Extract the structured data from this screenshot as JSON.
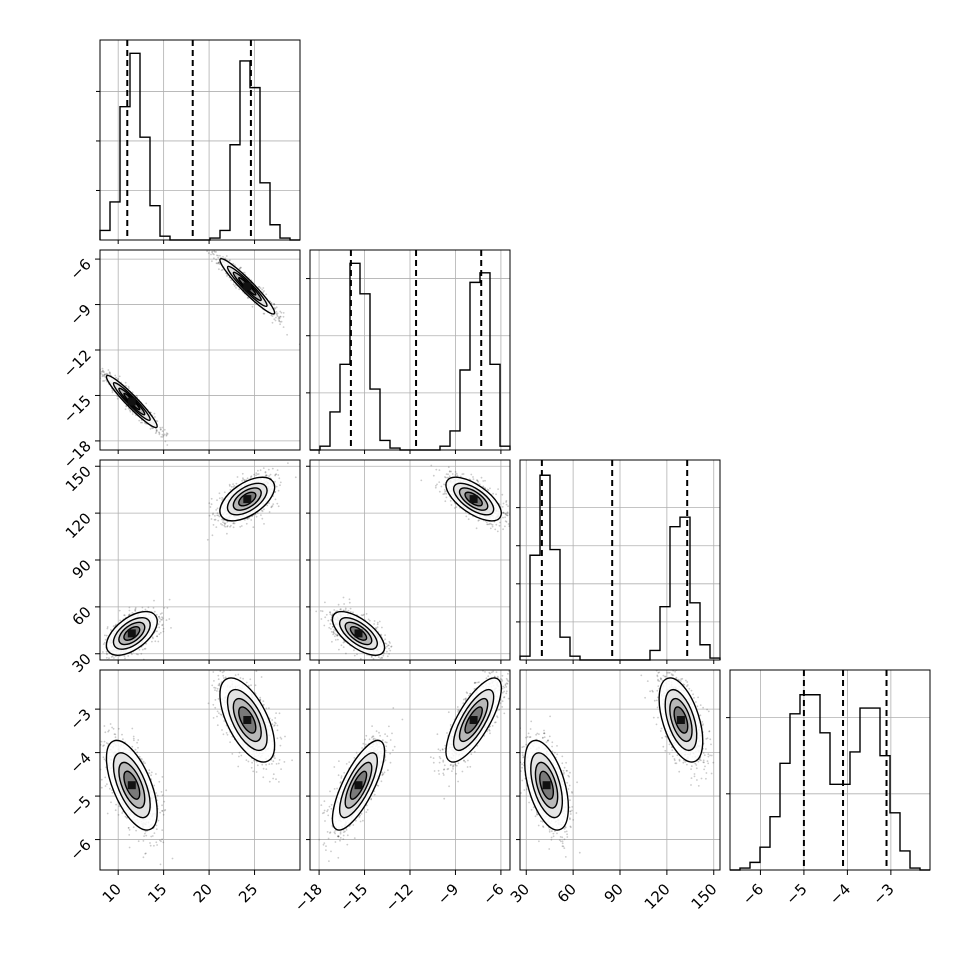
{
  "chart_data": {
    "type": "scatter",
    "style": "corner plot: 1-D histograms on the diagonal, 2-D scatter points with density contours below the diagonal",
    "grid": true,
    "colors": {
      "ink": "#000000",
      "grid": "#b0b0b0",
      "contour_fills": [
        "#ffffff",
        "#e4e4e4",
        "#b8b8b8",
        "#7a7a7a",
        "#111111"
      ],
      "points": "#444444"
    },
    "parameters": [
      {
        "range": [
          8,
          30
        ],
        "ticks": [
          10,
          15,
          20,
          25
        ],
        "tick_labels": [
          "10",
          "15",
          "20",
          "25"
        ],
        "quantiles": [
          11.0,
          18.2,
          24.6
        ],
        "modes": [
          {
            "center": 11.5,
            "sd": 1.3,
            "weight": 0.5
          },
          {
            "center": 24.2,
            "sd": 1.4,
            "weight": 0.5
          }
        ]
      },
      {
        "range": [
          -18.6,
          -5.4
        ],
        "ticks": [
          -18,
          -15,
          -12,
          -9,
          -6
        ],
        "tick_labels": [
          "−18",
          "−15",
          "−12",
          "−9",
          "−6"
        ],
        "quantiles": [
          -15.9,
          -11.6,
          -7.3
        ],
        "modes": [
          {
            "center": -15.4,
            "sd": 0.8,
            "weight": 0.5
          },
          {
            "center": -7.8,
            "sd": 0.85,
            "weight": 0.5
          }
        ]
      },
      {
        "range": [
          26,
          154
        ],
        "ticks": [
          30,
          60,
          90,
          120,
          150
        ],
        "tick_labels": [
          "30",
          "60",
          "90",
          "120",
          "150"
        ],
        "quantiles": [
          40,
          85,
          133
        ],
        "modes": [
          {
            "center": 43,
            "sd": 6.5,
            "weight": 0.5
          },
          {
            "center": 129,
            "sd": 6.5,
            "weight": 0.5
          }
        ]
      },
      {
        "range": [
          -6.7,
          -2.1
        ],
        "ticks": [
          -6,
          -5,
          -4,
          -3
        ],
        "tick_labels": [
          "−6",
          "−5",
          "−4",
          "−3"
        ],
        "quantiles": [
          -5.0,
          -4.1,
          -3.1
        ],
        "modes": [
          {
            "center": -4.75,
            "sd": 0.48,
            "weight": 0.5
          },
          {
            "center": -3.25,
            "sd": 0.45,
            "weight": 0.5
          }
        ]
      }
    ],
    "histograms": [
      {
        "param": 0,
        "bins": [
          8,
          9.1,
          10.2,
          11.3,
          12.4,
          13.5,
          14.6,
          15.7,
          16.8,
          17.9,
          19,
          20.1,
          21.2,
          22.3,
          23.4,
          24.5,
          25.6,
          26.7,
          27.8,
          28.9,
          30
        ],
        "counts": [
          0.05,
          0.2,
          0.7,
          0.98,
          0.54,
          0.18,
          0.02,
          0,
          0,
          0,
          0,
          0.01,
          0.05,
          0.5,
          0.94,
          0.8,
          0.3,
          0.08,
          0.01,
          0
        ],
        "yticks": [
          0.26,
          0.52,
          0.78
        ]
      },
      {
        "param": 1,
        "bins": [
          -18.6,
          -17.94,
          -17.28,
          -16.62,
          -15.96,
          -15.3,
          -14.64,
          -13.98,
          -13.32,
          -12.66,
          -12,
          -11.34,
          -10.68,
          -10.02,
          -9.36,
          -8.7,
          -8.04,
          -7.38,
          -6.72,
          -6.06,
          -5.4
        ],
        "counts": [
          0,
          0.02,
          0.2,
          0.45,
          0.98,
          0.82,
          0.32,
          0.05,
          0.01,
          0,
          0,
          0,
          0,
          0.02,
          0.1,
          0.42,
          0.88,
          0.93,
          0.45,
          0.02
        ],
        "yticks": [
          0.3,
          0.6,
          0.9
        ]
      },
      {
        "param": 2,
        "bins": [
          26,
          32.4,
          38.8,
          45.2,
          51.6,
          58,
          64.4,
          70.8,
          77.2,
          83.6,
          90,
          96.4,
          102.8,
          109.2,
          115.6,
          122,
          128.4,
          134.8,
          141.2,
          147.6,
          154
        ],
        "counts": [
          0.02,
          0.55,
          0.97,
          0.58,
          0.12,
          0.02,
          0,
          0,
          0,
          0,
          0,
          0,
          0,
          0.05,
          0.28,
          0.7,
          0.75,
          0.3,
          0.08,
          0.01
        ],
        "yticks": [
          0.2,
          0.4,
          0.6,
          0.8
        ]
      },
      {
        "param": 3,
        "bins": [
          -6.7,
          -6.47,
          -6.24,
          -6.01,
          -5.78,
          -5.55,
          -5.32,
          -5.09,
          -4.86,
          -4.63,
          -4.4,
          -4.17,
          -3.94,
          -3.71,
          -3.48,
          -3.25,
          -3.02,
          -2.79,
          -2.56,
          -2.33,
          -2.1
        ],
        "counts": [
          0,
          0.01,
          0.04,
          0.12,
          0.28,
          0.56,
          0.82,
          0.92,
          0.92,
          0.72,
          0.45,
          0.45,
          0.62,
          0.85,
          0.85,
          0.6,
          0.3,
          0.1,
          0.01,
          0
        ],
        "yticks": [
          0.4,
          0.8
        ]
      }
    ],
    "pairs": [
      {
        "x": 0,
        "y": 1,
        "correlation": -0.95,
        "points": 2000
      },
      {
        "x": 0,
        "y": 2,
        "correlation": 0.55,
        "points": 2000
      },
      {
        "x": 1,
        "y": 2,
        "correlation": -0.65,
        "points": 2000
      },
      {
        "x": 0,
        "y": 3,
        "correlation": -0.6,
        "points": 2000
      },
      {
        "x": 1,
        "y": 3,
        "correlation": 0.75,
        "points": 2000
      },
      {
        "x": 2,
        "y": 3,
        "correlation": -0.5,
        "points": 2000
      }
    ],
    "contour_levels": [
      0.1,
      0.3,
      0.55,
      0.8
    ],
    "title": "",
    "xlabel": "",
    "ylabel": ""
  }
}
